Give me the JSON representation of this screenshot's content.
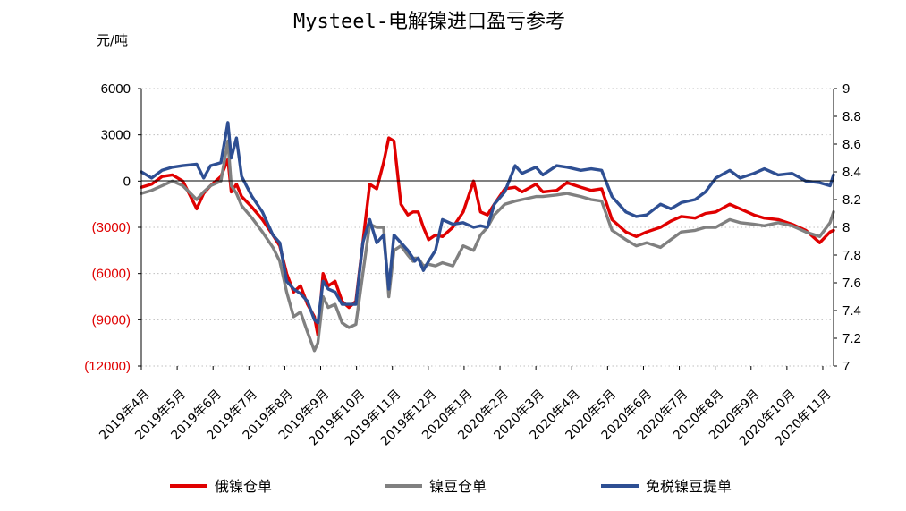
{
  "chart_data": {
    "type": "line",
    "title": "Mysteel-电解镍进口盈亏参考",
    "ylabel": "元/吨",
    "y2label": "",
    "xlabel": "",
    "ylim": [
      -12000,
      6000
    ],
    "y2lim": [
      7,
      9
    ],
    "yticks": [
      {
        "value": 6000,
        "label": "6000"
      },
      {
        "value": 3000,
        "label": "3000"
      },
      {
        "value": 0,
        "label": "0"
      },
      {
        "value": -3000,
        "label": "(3000)"
      },
      {
        "value": -6000,
        "label": "(6000)"
      },
      {
        "value": -9000,
        "label": "(9000)"
      },
      {
        "value": -12000,
        "label": "(12000)"
      }
    ],
    "y2ticks": [
      "9",
      "8.8",
      "8.6",
      "8.4",
      "8.2",
      "8",
      "7.8",
      "7.6",
      "7.4",
      "7.2",
      "7"
    ],
    "categories": [
      "2019年4月",
      "2019年5月",
      "2019年6月",
      "2019年7月",
      "2019年8月",
      "2019年9月",
      "2019年10月",
      "2019年11月",
      "2019年12月",
      "2020年1月",
      "2020年2月",
      "2020年3月",
      "2020年4月",
      "2020年5月",
      "2020年6月",
      "2020年7月",
      "2020年8月",
      "2020年9月",
      "2020年10月",
      "2020年11月"
    ],
    "x_range": [
      0,
      20
    ],
    "grid": "horizontal-dotted",
    "legend_position": "bottom",
    "series": [
      {
        "name": "俄镍仓单",
        "color": "#e00000",
        "axis": "left",
        "x": [
          0,
          0.3,
          0.6,
          0.9,
          1.2,
          1.6,
          1.8,
          2.0,
          2.3,
          2.5,
          2.6,
          2.75,
          2.9,
          3.2,
          3.5,
          3.8,
          4.0,
          4.2,
          4.4,
          4.6,
          4.8,
          5.0,
          5.1,
          5.25,
          5.4,
          5.6,
          5.8,
          6.0,
          6.2,
          6.4,
          6.6,
          6.8,
          7.0,
          7.15,
          7.3,
          7.5,
          7.7,
          7.85,
          7.9,
          8.0,
          8.15,
          8.3,
          8.5,
          8.7,
          9.0,
          9.3,
          9.6,
          9.8,
          10.0,
          10.2,
          10.5,
          10.8,
          11.0,
          11.4,
          11.6,
          12.0,
          12.3,
          12.7,
          13.0,
          13.3,
          13.6,
          14.0,
          14.3,
          14.6,
          15.0,
          15.3,
          15.6,
          16.0,
          16.3,
          16.6,
          17.0,
          17.3,
          17.7,
          18.0,
          18.4,
          18.8,
          19.2,
          19.6,
          19.9,
          20.0
        ],
        "values": [
          -400,
          -200,
          300,
          400,
          0,
          -1800,
          -800,
          -300,
          300,
          1400,
          -700,
          -200,
          -1000,
          -1700,
          -2500,
          -3500,
          -4200,
          -6000,
          -7200,
          -6800,
          -8000,
          -8800,
          -10000,
          -6000,
          -6800,
          -6500,
          -7800,
          -8200,
          -7800,
          -4000,
          -200,
          -500,
          1200,
          2800,
          2600,
          -1500,
          -2200,
          -2000,
          -2000,
          -2000,
          -3000,
          -3800,
          -3500,
          -3600,
          -3000,
          -2000,
          0,
          -2000,
          -2200,
          -1500,
          -500,
          -400,
          -700,
          -200,
          -700,
          -600,
          -100,
          -400,
          -600,
          -500,
          -2500,
          -3300,
          -3600,
          -3300,
          -3000,
          -2600,
          -2300,
          -2400,
          -2100,
          -2000,
          -1500,
          -1800,
          -2200,
          -2400,
          -2500,
          -2800,
          -3200,
          -4000,
          -3300,
          -3200
        ]
      },
      {
        "name": "镍豆仓单",
        "color": "#808080",
        "axis": "left",
        "x": [
          0,
          0.3,
          0.6,
          0.9,
          1.2,
          1.6,
          1.8,
          2.0,
          2.3,
          2.5,
          2.6,
          2.75,
          2.9,
          3.2,
          3.5,
          3.8,
          4.0,
          4.2,
          4.4,
          4.6,
          4.8,
          5.0,
          5.1,
          5.25,
          5.4,
          5.6,
          5.8,
          6.0,
          6.2,
          6.4,
          6.6,
          6.8,
          7.0,
          7.15,
          7.3,
          7.5,
          7.7,
          7.85,
          7.9,
          8.0,
          8.15,
          8.3,
          8.5,
          8.7,
          9.0,
          9.3,
          9.6,
          9.8,
          10.0,
          10.2,
          10.5,
          10.8,
          11.0,
          11.4,
          11.6,
          12.0,
          12.3,
          12.7,
          13.0,
          13.3,
          13.6,
          14.0,
          14.3,
          14.6,
          15.0,
          15.3,
          15.6,
          16.0,
          16.3,
          16.6,
          17.0,
          17.3,
          17.7,
          18.0,
          18.4,
          18.8,
          19.2,
          19.6,
          19.9,
          20.0
        ],
        "values": [
          -800,
          -600,
          -300,
          0,
          -300,
          -1200,
          -700,
          -300,
          0,
          2600,
          -300,
          -800,
          -1600,
          -2400,
          -3300,
          -4300,
          -5200,
          -7200,
          -8800,
          -8500,
          -9800,
          -11000,
          -10500,
          -7500,
          -8200,
          -8000,
          -9200,
          -9500,
          -9300,
          -6000,
          -2800,
          -3000,
          -3000,
          -7500,
          -4500,
          -4200,
          -4800,
          -5200,
          -5000,
          -5000,
          -5500,
          -5400,
          -5500,
          -5300,
          -5500,
          -4200,
          -4500,
          -3500,
          -3000,
          -2200,
          -1500,
          -1300,
          -1200,
          -1000,
          -1000,
          -900,
          -800,
          -1000,
          -1200,
          -1300,
          -3200,
          -3800,
          -4200,
          -4000,
          -4300,
          -3800,
          -3300,
          -3200,
          -3000,
          -3000,
          -2500,
          -2700,
          -2800,
          -2900,
          -2700,
          -2900,
          -3300,
          -3600,
          -2700,
          -2000
        ]
      },
      {
        "name": "免税镍豆提单",
        "color": "#2e4f93",
        "axis": "left",
        "x": [
          0,
          0.3,
          0.6,
          0.9,
          1.2,
          1.6,
          1.8,
          2.0,
          2.3,
          2.5,
          2.6,
          2.75,
          2.9,
          3.2,
          3.5,
          3.8,
          4.0,
          4.2,
          4.4,
          4.6,
          4.8,
          5.0,
          5.1,
          5.25,
          5.4,
          5.6,
          5.8,
          6.0,
          6.2,
          6.4,
          6.6,
          6.8,
          7.0,
          7.15,
          7.3,
          7.5,
          7.7,
          7.85,
          7.9,
          8.0,
          8.15,
          8.3,
          8.5,
          8.7,
          9.0,
          9.3,
          9.6,
          9.8,
          10.0,
          10.2,
          10.5,
          10.8,
          11.0,
          11.4,
          11.6,
          12.0,
          12.3,
          12.7,
          13.0,
          13.3,
          13.6,
          14.0,
          14.3,
          14.6,
          15.0,
          15.3,
          15.6,
          16.0,
          16.3,
          16.6,
          17.0,
          17.3,
          17.7,
          18.0,
          18.4,
          18.8,
          19.2,
          19.6,
          19.9,
          20.0
        ],
        "values": [
          600,
          200,
          700,
          900,
          1000,
          1100,
          200,
          1000,
          1200,
          3800,
          1500,
          2800,
          300,
          -1000,
          -2000,
          -3500,
          -4000,
          -6500,
          -7000,
          -7300,
          -7800,
          -9000,
          -9200,
          -6500,
          -7000,
          -7200,
          -8000,
          -8000,
          -8000,
          -4000,
          -2500,
          -4000,
          -3500,
          -7000,
          -3500,
          -4000,
          -4500,
          -5000,
          -5200,
          -5000,
          -5800,
          -5200,
          -4500,
          -2500,
          -2800,
          -2700,
          -3000,
          -2900,
          -3000,
          -1500,
          -700,
          1000,
          500,
          900,
          400,
          1000,
          900,
          700,
          800,
          700,
          -1000,
          -2000,
          -2300,
          -2200,
          -1500,
          -1800,
          -1400,
          -1200,
          -700,
          200,
          700,
          200,
          500,
          800,
          400,
          500,
          0,
          -100,
          -300,
          400
        ]
      }
    ]
  }
}
